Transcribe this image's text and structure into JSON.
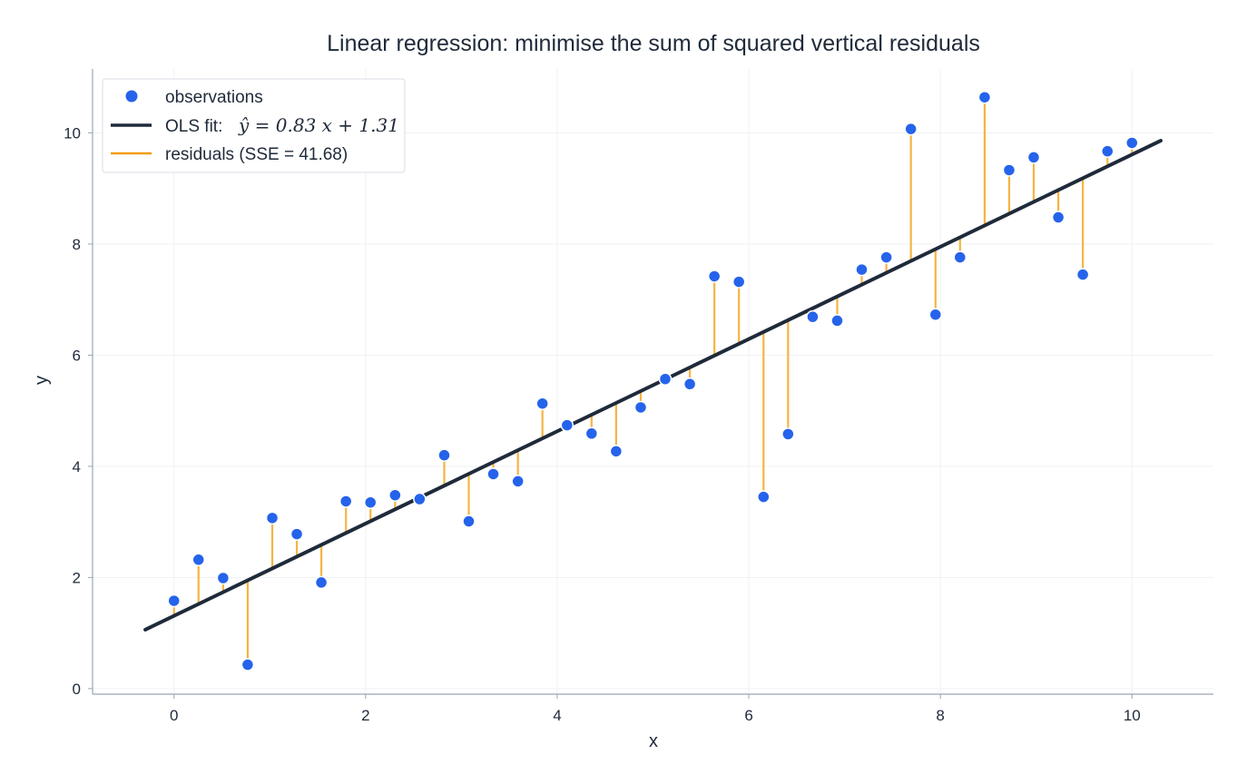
{
  "chart_data": {
    "type": "scatter",
    "title": "Linear regression: minimise the sum of squared vertical residuals",
    "xlabel": "x",
    "ylabel": "y",
    "xlim": [
      -0.85,
      10.85
    ],
    "ylim": [
      -0.1,
      11.15
    ],
    "xticks": [
      0,
      2,
      4,
      6,
      8,
      10
    ],
    "yticks": [
      0,
      2,
      4,
      6,
      8,
      10
    ],
    "grid": true,
    "legend_position": "top-left",
    "colors": {
      "points": "#2563eb",
      "fit_line": "#1f2a3a",
      "residuals": "#f5b443",
      "grid": "#eef1f5",
      "axes": "#9aa5b4"
    },
    "legend": {
      "observations": "observations",
      "fit_prefix": "OLS fit:",
      "fit_equation": "ŷ = 0.83 x + 1.31",
      "residuals": "residuals (SSE = 41.68)"
    },
    "fit": {
      "slope": 0.83,
      "intercept": 1.31,
      "x_range": [
        -0.3,
        10.3
      ]
    },
    "series": [
      {
        "name": "observations",
        "x": [
          0.0,
          0.256,
          0.513,
          0.769,
          1.026,
          1.282,
          1.538,
          1.795,
          2.051,
          2.308,
          2.564,
          2.821,
          3.077,
          3.333,
          3.59,
          3.846,
          4.103,
          4.359,
          4.615,
          4.872,
          5.128,
          5.385,
          5.641,
          5.897,
          6.154,
          6.41,
          6.667,
          6.923,
          7.179,
          7.436,
          7.692,
          7.949,
          8.205,
          8.462,
          8.718,
          8.974,
          9.231,
          9.487,
          9.744,
          10.0
        ],
        "y": [
          1.58,
          2.32,
          1.99,
          0.43,
          3.07,
          2.78,
          1.91,
          3.37,
          3.35,
          3.48,
          3.41,
          4.2,
          3.01,
          3.86,
          3.73,
          5.13,
          4.74,
          4.59,
          4.27,
          5.06,
          5.57,
          5.48,
          7.42,
          7.32,
          3.45,
          4.58,
          6.69,
          6.62,
          7.54,
          7.76,
          10.07,
          6.73,
          7.76,
          10.64,
          9.33,
          9.56,
          8.48,
          7.45,
          9.67,
          9.82
        ]
      }
    ]
  }
}
